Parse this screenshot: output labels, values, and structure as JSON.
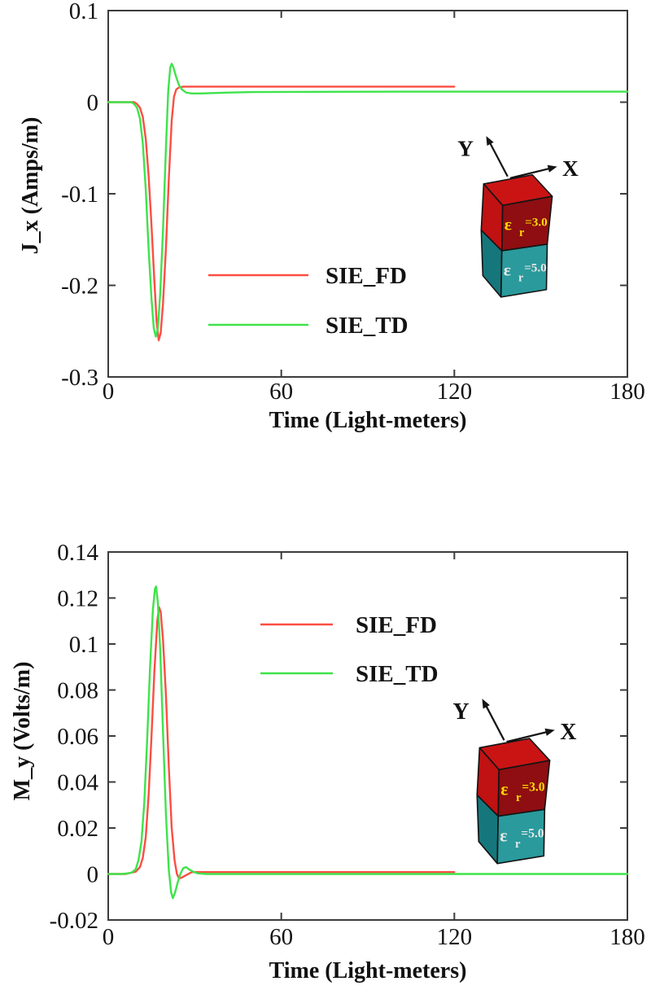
{
  "figure": {
    "background": "#ffffff"
  },
  "colors": {
    "axis_frame": "#3c3c3c",
    "tick_text": "#131313",
    "arrow": "#141414",
    "cube_top": "#ca1414",
    "cube_left_red": "#c01113",
    "cube_front_red": "#8e0e12",
    "cube_left_teal": "#15777c",
    "cube_front_teal": "#2a9a9c",
    "eps_top_text": "#ffdd00",
    "eps_bottom_text": "#e8e8e8"
  },
  "inset": {
    "y_axis_label": "Y",
    "x_axis_label": "X",
    "epsilon": "ε",
    "subscript": "r",
    "top_value": "=3.0",
    "bottom_value": "=5.0"
  },
  "chart_data": [
    {
      "type": "line",
      "id": "jx",
      "title": "",
      "xlabel": "Time (Light-meters)",
      "ylabel": "J_x (Amps/m)",
      "xlim": [
        0,
        180
      ],
      "ylim": [
        -0.3,
        0.1
      ],
      "grid": false,
      "legend_position": "center-left",
      "xticks": [
        {
          "v": 0,
          "label": "0"
        },
        {
          "v": 60,
          "label": "60"
        },
        {
          "v": 120,
          "label": "120"
        },
        {
          "v": 180,
          "label": "180"
        }
      ],
      "yticks": [
        {
          "v": 0.1,
          "label": "0.1"
        },
        {
          "v": 0,
          "label": "0"
        },
        {
          "v": -0.1,
          "label": "-0.1"
        },
        {
          "v": -0.2,
          "label": "-0.2"
        },
        {
          "v": -0.3,
          "label": "-0.3"
        }
      ],
      "series": [
        {
          "name": "SIE_FD",
          "color": "#fb4e42",
          "t": [
            0,
            6,
            9,
            10,
            11,
            12,
            13,
            14,
            15,
            16,
            16.8,
            17.5,
            18.2,
            19,
            20,
            21,
            22,
            22.8,
            23.6,
            24.5,
            26,
            30,
            40,
            60,
            90,
            120
          ],
          "v": [
            0,
            0,
            0,
            -0.002,
            -0.006,
            -0.016,
            -0.04,
            -0.08,
            -0.135,
            -0.195,
            -0.24,
            -0.26,
            -0.252,
            -0.22,
            -0.16,
            -0.085,
            -0.02,
            0.006,
            0.014,
            0.016,
            0.017,
            0.017,
            0.017,
            0.017,
            0.017,
            0.017
          ]
        },
        {
          "name": "SIE_TD",
          "color": "#3fe34a",
          "t": [
            0,
            5,
            8,
            9,
            10,
            11,
            12,
            13,
            14,
            15,
            15.8,
            16.5,
            17.2,
            18,
            19,
            20,
            20.8,
            21.5,
            22,
            22.6,
            23.5,
            24.5,
            25.5,
            27,
            29,
            32,
            36,
            42,
            50,
            70,
            100,
            140,
            180
          ],
          "v": [
            0,
            0,
            0,
            -0.002,
            -0.006,
            -0.018,
            -0.045,
            -0.095,
            -0.16,
            -0.215,
            -0.247,
            -0.256,
            -0.247,
            -0.21,
            -0.14,
            -0.05,
            0.012,
            0.038,
            0.042,
            0.038,
            0.028,
            0.019,
            0.014,
            0.0105,
            0.0095,
            0.0095,
            0.01,
            0.0105,
            0.011,
            0.0113,
            0.0115,
            0.0115,
            0.0115
          ]
        }
      ]
    },
    {
      "type": "line",
      "id": "my",
      "title": "",
      "xlabel": "Time (Light-meters)",
      "ylabel": "M_y (Volts/m)",
      "xlim": [
        0,
        180
      ],
      "ylim": [
        -0.02,
        0.14
      ],
      "grid": false,
      "legend_position": "top-center",
      "xticks": [
        {
          "v": 0,
          "label": "0"
        },
        {
          "v": 60,
          "label": "60"
        },
        {
          "v": 120,
          "label": "120"
        },
        {
          "v": 180,
          "label": "180"
        }
      ],
      "yticks": [
        {
          "v": 0.14,
          "label": "0.14"
        },
        {
          "v": 0.12,
          "label": "0.12"
        },
        {
          "v": 0.1,
          "label": "0.1"
        },
        {
          "v": 0.08,
          "label": "0.08"
        },
        {
          "v": 0.06,
          "label": "0.06"
        },
        {
          "v": 0.04,
          "label": "0.04"
        },
        {
          "v": 0.02,
          "label": "0.02"
        },
        {
          "v": 0,
          "label": "0"
        },
        {
          "v": -0.02,
          "label": "-0.02"
        }
      ],
      "series": [
        {
          "name": "SIE_FD",
          "color": "#fb4e42",
          "t": [
            0,
            6,
            9.5,
            11,
            12,
            13,
            14,
            15,
            16,
            17,
            17.6,
            18.2,
            19,
            20,
            21,
            22,
            23,
            23.8,
            24.6,
            25.6,
            27,
            29,
            34,
            45,
            60,
            90,
            120
          ],
          "v": [
            0,
            0,
            0.001,
            0.003,
            0.007,
            0.016,
            0.034,
            0.06,
            0.088,
            0.11,
            0.116,
            0.114,
            0.102,
            0.078,
            0.047,
            0.02,
            0.006,
            0,
            -0.002,
            -0.0015,
            -0.0005,
            0.0008,
            0.0008,
            0.0008,
            0.0008,
            0.0008,
            0.0008
          ]
        },
        {
          "name": "SIE_TD",
          "color": "#3fe34a",
          "t": [
            0,
            5,
            8,
            9.5,
            10.5,
            11.5,
            12.5,
            13.5,
            14.5,
            15.5,
            16.2,
            16.6,
            17.2,
            18,
            19,
            20,
            21,
            21.8,
            22.4,
            23.2,
            24,
            25,
            26,
            27,
            28,
            29.5,
            31,
            34,
            45,
            60,
            100,
            140,
            180
          ],
          "v": [
            0,
            0,
            0.0005,
            0.002,
            0.006,
            0.014,
            0.031,
            0.058,
            0.09,
            0.115,
            0.124,
            0.125,
            0.118,
            0.098,
            0.062,
            0.026,
            0.002,
            -0.008,
            -0.0105,
            -0.008,
            -0.004,
            0,
            0.0025,
            0.003,
            0.002,
            0.001,
            0.0003,
            0,
            0,
            0,
            0,
            0,
            0
          ]
        }
      ]
    }
  ]
}
